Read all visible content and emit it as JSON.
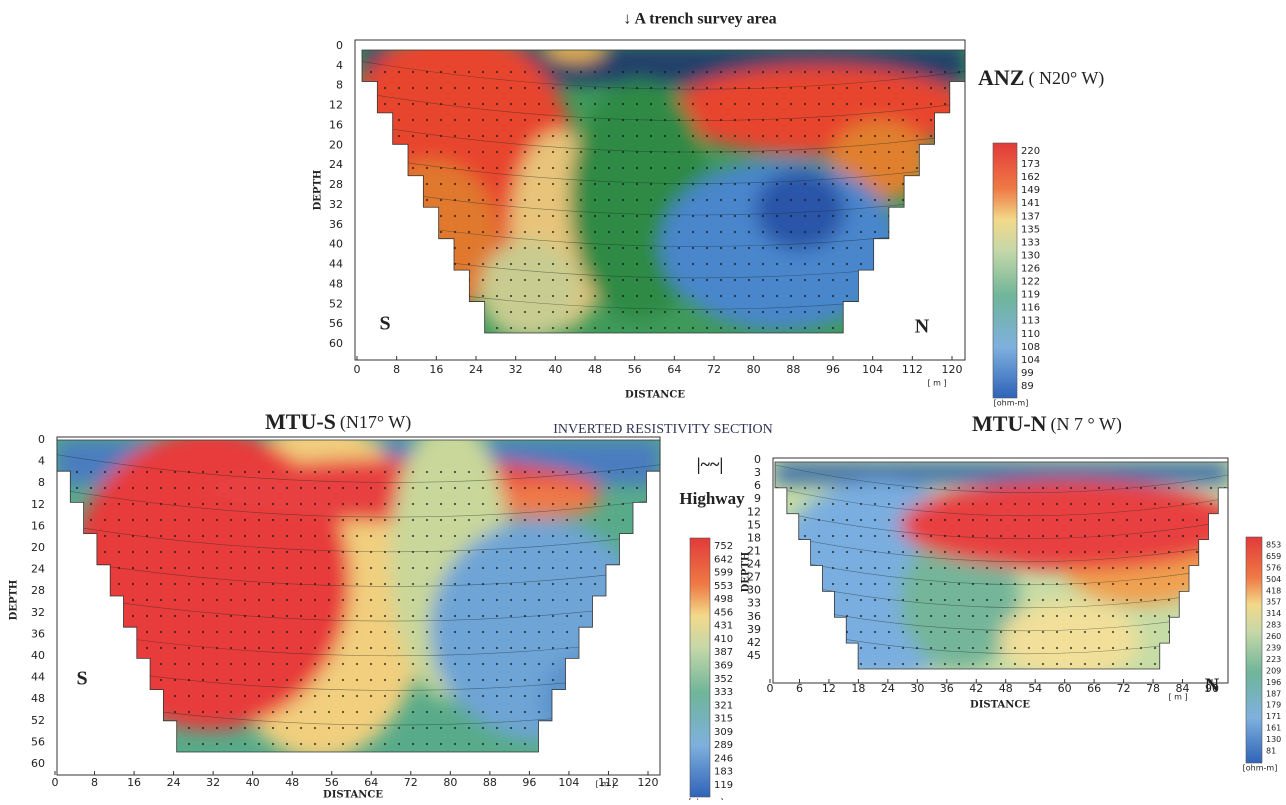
{
  "annotation": "↓ A trench survey area",
  "center_label": "INVERTED RESISTIVITY SECTION",
  "highway": {
    "symbol": "|~~|",
    "label": "Highway"
  },
  "panels": [
    {
      "title": "ANZ",
      "orientation": "( N20° W)",
      "y_label": "DEPTH",
      "x_label": "DISTANCE",
      "x_unit": "[ m ]",
      "yticks": [
        "0",
        "4",
        "8",
        "12",
        "16",
        "20",
        "24",
        "28",
        "32",
        "36",
        "40",
        "44",
        "48",
        "52",
        "56",
        "60"
      ],
      "xticks": [
        "0",
        "8",
        "16",
        "24",
        "32",
        "40",
        "48",
        "56",
        "64",
        "72",
        "80",
        "88",
        "96",
        "104",
        "112",
        "120"
      ],
      "left_marker": "S",
      "right_marker": "N",
      "colorbar_labels": [
        "220",
        "173",
        "162",
        "149",
        "141",
        "137",
        "135",
        "133",
        "130",
        "126",
        "122",
        "119",
        "116",
        "113",
        "110",
        "108",
        "104",
        "99",
        "89"
      ],
      "colorbar_unit": "[ohm-m]"
    },
    {
      "title": "MTU-S",
      "orientation": "(N17° W)",
      "y_label": "DEPTH",
      "x_label": "DISTANCE",
      "x_unit": "[ m ]",
      "yticks": [
        "0",
        "4",
        "8",
        "12",
        "16",
        "20",
        "24",
        "28",
        "32",
        "36",
        "40",
        "44",
        "48",
        "52",
        "56",
        "60"
      ],
      "xticks": [
        "0",
        "8",
        "16",
        "24",
        "32",
        "40",
        "48",
        "56",
        "64",
        "72",
        "80",
        "88",
        "96",
        "104",
        "112",
        "120"
      ],
      "left_marker": "S",
      "colorbar_labels": [
        "752",
        "642",
        "599",
        "553",
        "498",
        "456",
        "431",
        "410",
        "387",
        "369",
        "352",
        "333",
        "321",
        "315",
        "309",
        "289",
        "246",
        "183",
        "119"
      ],
      "colorbar_unit": "[ohm-m]"
    },
    {
      "title": "MTU-N",
      "orientation": "(N 7 ° W)",
      "y_label": "DEPTH",
      "x_label": "DISTANCE",
      "x_unit": "[ m ]",
      "yticks": [
        "0",
        "3",
        "6",
        "9",
        "12",
        "15",
        "18",
        "21",
        "24",
        "27",
        "30",
        "33",
        "36",
        "39",
        "42",
        "45"
      ],
      "xticks": [
        "0",
        "6",
        "12",
        "18",
        "24",
        "30",
        "36",
        "42",
        "48",
        "54",
        "60",
        "66",
        "72",
        "78",
        "84",
        "90"
      ],
      "right_marker": "N",
      "colorbar_labels": [
        "853",
        "659",
        "576",
        "504",
        "418",
        "357",
        "314",
        "283",
        "260",
        "239",
        "223",
        "209",
        "196",
        "187",
        "179",
        "171",
        "161",
        "130",
        "81"
      ],
      "colorbar_unit": "[ohm-m]"
    }
  ]
}
